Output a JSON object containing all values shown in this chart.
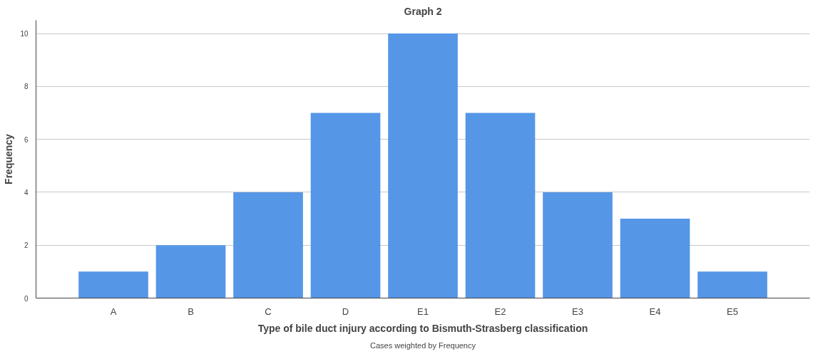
{
  "chart_data": {
    "type": "bar",
    "title": "Graph 2",
    "xlabel": "Type of bile duct injury according to Bismuth-Strasberg classification",
    "ylabel": "Frequency",
    "categories": [
      "A",
      "B",
      "C",
      "D",
      "E1",
      "E2",
      "E3",
      "E4",
      "E5"
    ],
    "values": [
      1,
      2,
      4,
      7,
      10,
      7,
      4,
      3,
      1
    ],
    "color": "#5596e6",
    "ylim": [
      0,
      10.5
    ],
    "yticks": [
      0,
      2,
      4,
      6,
      8,
      10
    ],
    "grid": "y",
    "annotations": [
      "Cases weighted by Frequency"
    ]
  }
}
